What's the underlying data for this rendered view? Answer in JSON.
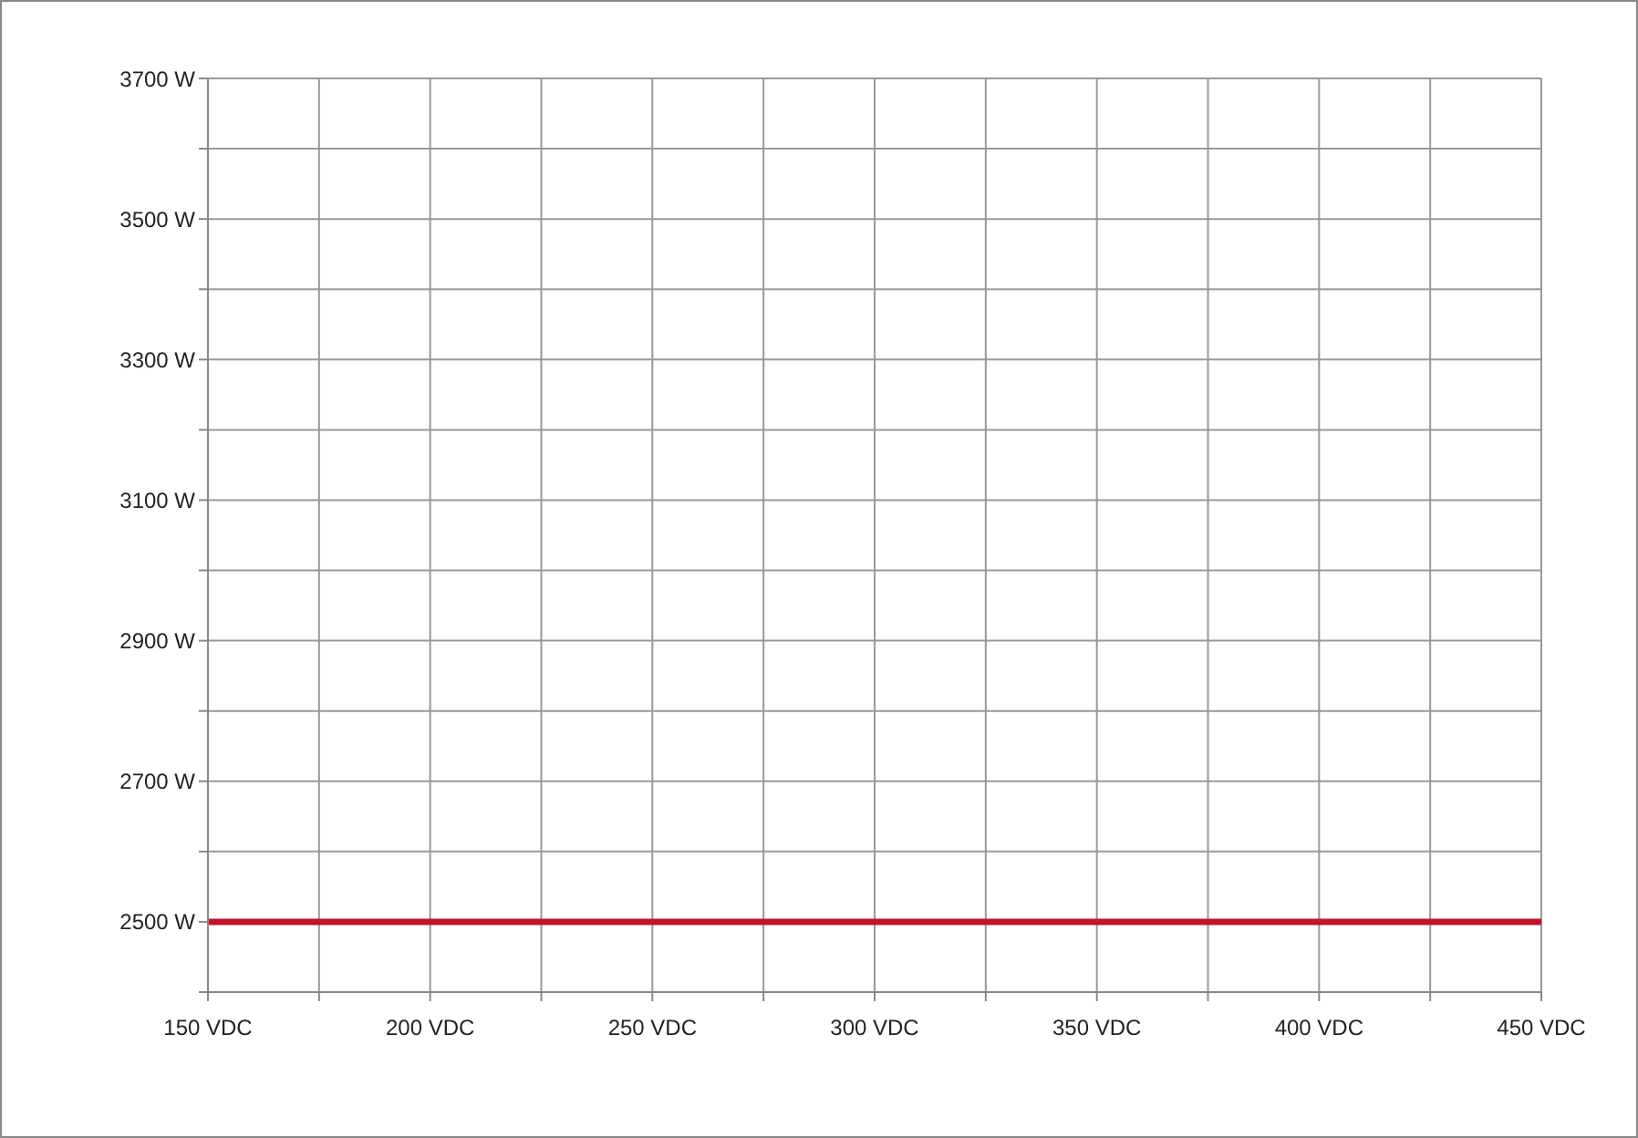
{
  "chart_data": {
    "type": "line",
    "x": [
      150,
      450
    ],
    "series": [
      {
        "color": "#c0142c",
        "values": [
          2500,
          2500
        ]
      }
    ],
    "xlim": [
      150,
      450
    ],
    "xticks": [
      {
        "value": 150,
        "label": "150 VDC"
      },
      {
        "value": 175,
        "label": null
      },
      {
        "value": 200,
        "label": "200 VDC"
      },
      {
        "value": 225,
        "label": null
      },
      {
        "value": 250,
        "label": "250 VDC"
      },
      {
        "value": 275,
        "label": null
      },
      {
        "value": 300,
        "label": "300 VDC"
      },
      {
        "value": 325,
        "label": null
      },
      {
        "value": 350,
        "label": "350 VDC"
      },
      {
        "value": 375,
        "label": null
      },
      {
        "value": 400,
        "label": "400 VDC"
      },
      {
        "value": 425,
        "label": null
      },
      {
        "value": 450,
        "label": "450 VDC"
      }
    ],
    "ylim": [
      2400,
      3700
    ],
    "yticks": [
      {
        "value": 2400,
        "label": null
      },
      {
        "value": 2500,
        "label": "2500 W"
      },
      {
        "value": 2600,
        "label": null
      },
      {
        "value": 2700,
        "label": "2700 W"
      },
      {
        "value": 2800,
        "label": null
      },
      {
        "value": 2900,
        "label": "2900 W"
      },
      {
        "value": 3000,
        "label": null
      },
      {
        "value": 3100,
        "label": "3100 W"
      },
      {
        "value": 3200,
        "label": null
      },
      {
        "value": 3300,
        "label": "3300 W"
      },
      {
        "value": 3400,
        "label": null
      },
      {
        "value": 3500,
        "label": "3500 W"
      },
      {
        "value": 3600,
        "label": null
      },
      {
        "value": 3700,
        "label": "3700 W"
      }
    ],
    "grid": true
  }
}
